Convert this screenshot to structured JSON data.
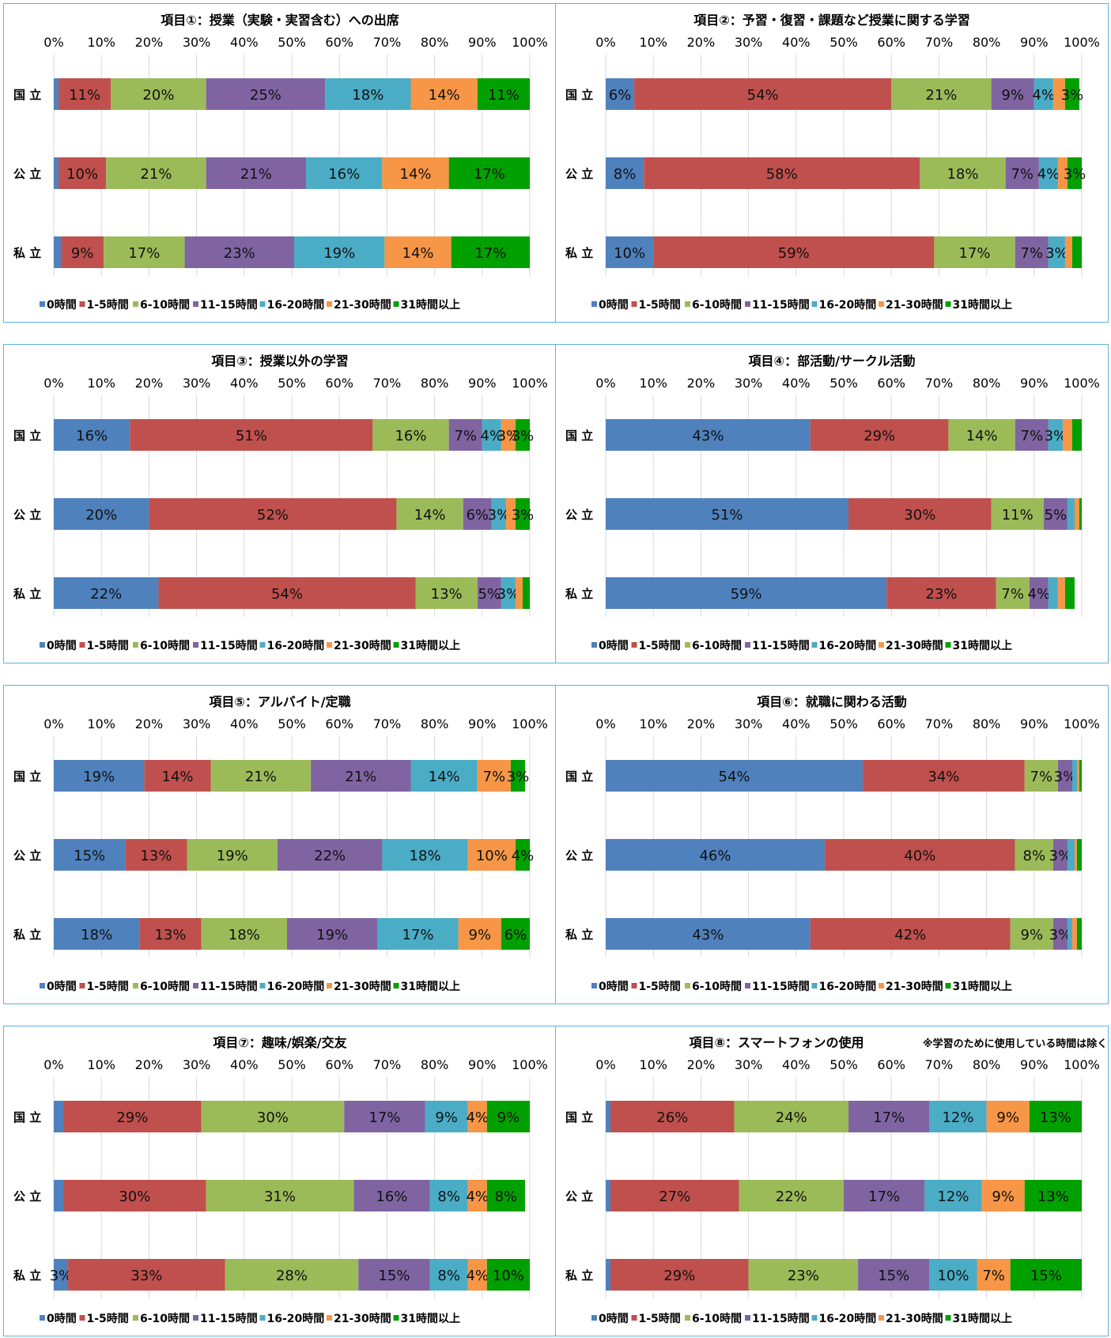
{
  "legend": {
    "items": [
      "0時間",
      "1-5時間",
      "6-10時間",
      "11-15時間",
      "16-20時間",
      "21-30時間",
      "31時間以上"
    ],
    "colors": [
      "#4f81bd",
      "#c0504d",
      "#9bbb59",
      "#8064a2",
      "#4bacc6",
      "#f79646",
      "#00a000"
    ]
  },
  "chart_data": [
    {
      "type": "bar",
      "stacked": "percent",
      "orientation": "horizontal",
      "title": "項目①：授業（実験・実習含む）への出席",
      "categories": [
        "国 立",
        "公 立",
        "私 立"
      ],
      "xticks": [
        "0%",
        "10%",
        "20%",
        "30%",
        "40%",
        "50%",
        "60%",
        "70%",
        "80%",
        "90%",
        "100%"
      ],
      "xlim": [
        0,
        100
      ],
      "legend_position": "bottom",
      "series": [
        {
          "name": "0時間",
          "values": [
            1,
            1,
            1.5
          ]
        },
        {
          "name": "1-5時間",
          "values": [
            11,
            10,
            9
          ]
        },
        {
          "name": "6-10時間",
          "values": [
            20,
            21,
            17
          ]
        },
        {
          "name": "11-15時間",
          "values": [
            25,
            21,
            23
          ]
        },
        {
          "name": "16-20時間",
          "values": [
            18,
            16,
            19
          ]
        },
        {
          "name": "21-30時間",
          "values": [
            14,
            14,
            14
          ]
        },
        {
          "name": "31時間以上",
          "values": [
            11,
            17,
            16.5
          ]
        }
      ],
      "labels": [
        [
          "",
          "11%",
          "20%",
          "25%",
          "18%",
          "14%",
          "11%"
        ],
        [
          "",
          "10%",
          "21%",
          "21%",
          "16%",
          "14%",
          "17%"
        ],
        [
          "",
          "9%",
          "17%",
          "23%",
          "19%",
          "14%",
          "17%"
        ]
      ]
    },
    {
      "type": "bar",
      "stacked": "percent",
      "orientation": "horizontal",
      "title": "項目②：予習・復習・課題など授業に関する学習",
      "categories": [
        "国 立",
        "公 立",
        "私 立"
      ],
      "xticks": [
        "0%",
        "10%",
        "20%",
        "30%",
        "40%",
        "50%",
        "60%",
        "70%",
        "80%",
        "90%",
        "100%"
      ],
      "xlim": [
        0,
        100
      ],
      "legend_position": "bottom",
      "series": [
        {
          "name": "0時間",
          "values": [
            6,
            8,
            10
          ]
        },
        {
          "name": "1-5時間",
          "values": [
            54,
            58,
            59
          ]
        },
        {
          "name": "6-10時間",
          "values": [
            21,
            18,
            17
          ]
        },
        {
          "name": "11-15時間",
          "values": [
            9,
            7,
            7
          ]
        },
        {
          "name": "16-20時間",
          "values": [
            4,
            4,
            3.5
          ]
        },
        {
          "name": "21-30時間",
          "values": [
            2.5,
            2,
            1.5
          ]
        },
        {
          "name": "31時間以上",
          "values": [
            3,
            3,
            2
          ]
        }
      ],
      "labels": [
        [
          "6%",
          "54%",
          "21%",
          "9%",
          "4%",
          "",
          "3%"
        ],
        [
          "8%",
          "58%",
          "18%",
          "7%",
          "4%",
          "",
          "3%"
        ],
        [
          "10%",
          "59%",
          "17%",
          "7%",
          "3%",
          "",
          ""
        ]
      ]
    },
    {
      "type": "bar",
      "stacked": "percent",
      "orientation": "horizontal",
      "title": "項目③：授業以外の学習",
      "categories": [
        "国 立",
        "公 立",
        "私 立"
      ],
      "xticks": [
        "0%",
        "10%",
        "20%",
        "30%",
        "40%",
        "50%",
        "60%",
        "70%",
        "80%",
        "90%",
        "100%"
      ],
      "xlim": [
        0,
        100
      ],
      "legend_position": "bottom",
      "series": [
        {
          "name": "0時間",
          "values": [
            16,
            20,
            22
          ]
        },
        {
          "name": "1-5時間",
          "values": [
            51,
            52,
            54
          ]
        },
        {
          "name": "6-10時間",
          "values": [
            16,
            14,
            13
          ]
        },
        {
          "name": "11-15時間",
          "values": [
            7,
            6,
            5
          ]
        },
        {
          "name": "16-20時間",
          "values": [
            4,
            3,
            3
          ]
        },
        {
          "name": "21-30時間",
          "values": [
            3,
            2,
            1.5
          ]
        },
        {
          "name": "31時間以上",
          "values": [
            3,
            3,
            1.5
          ]
        }
      ],
      "labels": [
        [
          "16%",
          "51%",
          "16%",
          "7%",
          "4%",
          "3%",
          "3%"
        ],
        [
          "20%",
          "52%",
          "14%",
          "6%",
          "3%",
          "",
          "3%"
        ],
        [
          "22%",
          "54%",
          "13%",
          "5%",
          "3%",
          "",
          ""
        ]
      ]
    },
    {
      "type": "bar",
      "stacked": "percent",
      "orientation": "horizontal",
      "title": "項目④：部活動/サークル活動",
      "categories": [
        "国 立",
        "公 立",
        "私 立"
      ],
      "xticks": [
        "0%",
        "10%",
        "20%",
        "30%",
        "40%",
        "50%",
        "60%",
        "70%",
        "80%",
        "90%",
        "100%"
      ],
      "xlim": [
        0,
        100
      ],
      "legend_position": "bottom",
      "series": [
        {
          "name": "0時間",
          "values": [
            43,
            51,
            59
          ]
        },
        {
          "name": "1-5時間",
          "values": [
            29,
            30,
            23
          ]
        },
        {
          "name": "6-10時間",
          "values": [
            14,
            11,
            7
          ]
        },
        {
          "name": "11-15時間",
          "values": [
            7,
            5,
            4
          ]
        },
        {
          "name": "16-20時間",
          "values": [
            3,
            1.5,
            2
          ]
        },
        {
          "name": "21-30時間",
          "values": [
            2,
            1,
            1.5
          ]
        },
        {
          "name": "31時間以上",
          "values": [
            2,
            0.5,
            2
          ]
        }
      ],
      "labels": [
        [
          "43%",
          "29%",
          "14%",
          "7%",
          "3%",
          "",
          ""
        ],
        [
          "51%",
          "30%",
          "11%",
          "5%",
          "",
          "",
          ""
        ],
        [
          "59%",
          "23%",
          "7%",
          "4%",
          "",
          "",
          ""
        ]
      ]
    },
    {
      "type": "bar",
      "stacked": "percent",
      "orientation": "horizontal",
      "title": "項目⑤：アルバイト/定職",
      "categories": [
        "国 立",
        "公 立",
        "私 立"
      ],
      "xticks": [
        "0%",
        "10%",
        "20%",
        "30%",
        "40%",
        "50%",
        "60%",
        "70%",
        "80%",
        "90%",
        "100%"
      ],
      "xlim": [
        0,
        100
      ],
      "legend_position": "bottom",
      "series": [
        {
          "name": "0時間",
          "values": [
            19,
            15,
            18
          ]
        },
        {
          "name": "1-5時間",
          "values": [
            14,
            13,
            13
          ]
        },
        {
          "name": "6-10時間",
          "values": [
            21,
            19,
            18
          ]
        },
        {
          "name": "11-15時間",
          "values": [
            21,
            22,
            19
          ]
        },
        {
          "name": "16-20時間",
          "values": [
            14,
            18,
            17
          ]
        },
        {
          "name": "21-30時間",
          "values": [
            7,
            10,
            9
          ]
        },
        {
          "name": "31時間以上",
          "values": [
            3,
            4,
            6
          ]
        }
      ],
      "labels": [
        [
          "19%",
          "14%",
          "21%",
          "21%",
          "14%",
          "7%",
          "3%"
        ],
        [
          "15%",
          "13%",
          "19%",
          "22%",
          "18%",
          "10%",
          "4%"
        ],
        [
          "18%",
          "13%",
          "18%",
          "19%",
          "17%",
          "9%",
          "6%"
        ]
      ]
    },
    {
      "type": "bar",
      "stacked": "percent",
      "orientation": "horizontal",
      "title": "項目⑥：就職に関わる活動",
      "categories": [
        "国 立",
        "公 立",
        "私 立"
      ],
      "xticks": [
        "0%",
        "10%",
        "20%",
        "30%",
        "40%",
        "50%",
        "60%",
        "70%",
        "80%",
        "90%",
        "100%"
      ],
      "xlim": [
        0,
        100
      ],
      "legend_position": "bottom",
      "series": [
        {
          "name": "0時間",
          "values": [
            54,
            46,
            43
          ]
        },
        {
          "name": "1-5時間",
          "values": [
            34,
            40,
            42
          ]
        },
        {
          "name": "6-10時間",
          "values": [
            7,
            8,
            9
          ]
        },
        {
          "name": "11-15時間",
          "values": [
            3,
            3,
            3
          ]
        },
        {
          "name": "16-20時間",
          "values": [
            1,
            1.5,
            1
          ]
        },
        {
          "name": "21-30時間",
          "values": [
            0.5,
            0.5,
            1
          ]
        },
        {
          "name": "31時間以上",
          "values": [
            0.5,
            1,
            1
          ]
        }
      ],
      "labels": [
        [
          "54%",
          "34%",
          "7%",
          "3%",
          "",
          "",
          ""
        ],
        [
          "46%",
          "40%",
          "8%",
          "3%",
          "",
          "",
          ""
        ],
        [
          "43%",
          "42%",
          "9%",
          "3%",
          "",
          "",
          ""
        ]
      ]
    },
    {
      "type": "bar",
      "stacked": "percent",
      "orientation": "horizontal",
      "title": "項目⑦：趣味/娯楽/交友",
      "categories": [
        "国 立",
        "公 立",
        "私 立"
      ],
      "xticks": [
        "0%",
        "10%",
        "20%",
        "30%",
        "40%",
        "50%",
        "60%",
        "70%",
        "80%",
        "90%",
        "100%"
      ],
      "xlim": [
        0,
        100
      ],
      "legend_position": "bottom",
      "series": [
        {
          "name": "0時間",
          "values": [
            2,
            2,
            3
          ]
        },
        {
          "name": "1-5時間",
          "values": [
            29,
            30,
            33
          ]
        },
        {
          "name": "6-10時間",
          "values": [
            30,
            31,
            28
          ]
        },
        {
          "name": "11-15時間",
          "values": [
            17,
            16,
            15
          ]
        },
        {
          "name": "16-20時間",
          "values": [
            9,
            8,
            8
          ]
        },
        {
          "name": "21-30時間",
          "values": [
            4,
            4,
            4
          ]
        },
        {
          "name": "31時間以上",
          "values": [
            9,
            8,
            10
          ]
        }
      ],
      "labels": [
        [
          "",
          "29%",
          "30%",
          "17%",
          "9%",
          "4%",
          "9%"
        ],
        [
          "",
          "30%",
          "31%",
          "16%",
          "8%",
          "4%",
          "8%"
        ],
        [
          "3%",
          "33%",
          "28%",
          "15%",
          "8%",
          "4%",
          "10%"
        ]
      ]
    },
    {
      "type": "bar",
      "stacked": "percent",
      "orientation": "horizontal",
      "title": "項目⑧：スマートフォンの使用",
      "subtitle": "※学習のために使用している時間は除く",
      "categories": [
        "国 立",
        "公 立",
        "私 立"
      ],
      "xticks": [
        "0%",
        "10%",
        "20%",
        "30%",
        "40%",
        "50%",
        "60%",
        "70%",
        "80%",
        "90%",
        "100%"
      ],
      "xlim": [
        0,
        100
      ],
      "legend_position": "bottom",
      "series": [
        {
          "name": "0時間",
          "values": [
            1,
            1,
            1
          ]
        },
        {
          "name": "1-5時間",
          "values": [
            26,
            27,
            29
          ]
        },
        {
          "name": "6-10時間",
          "values": [
            24,
            22,
            23
          ]
        },
        {
          "name": "11-15時間",
          "values": [
            17,
            17,
            15
          ]
        },
        {
          "name": "16-20時間",
          "values": [
            12,
            12,
            10
          ]
        },
        {
          "name": "21-30時間",
          "values": [
            9,
            9,
            7
          ]
        },
        {
          "name": "31時間以上",
          "values": [
            13,
            13,
            15
          ]
        }
      ],
      "labels": [
        [
          "",
          "26%",
          "24%",
          "17%",
          "12%",
          "9%",
          "13%"
        ],
        [
          "",
          "27%",
          "22%",
          "17%",
          "12%",
          "9%",
          "13%"
        ],
        [
          "",
          "29%",
          "23%",
          "15%",
          "10%",
          "7%",
          "15%"
        ]
      ]
    }
  ]
}
